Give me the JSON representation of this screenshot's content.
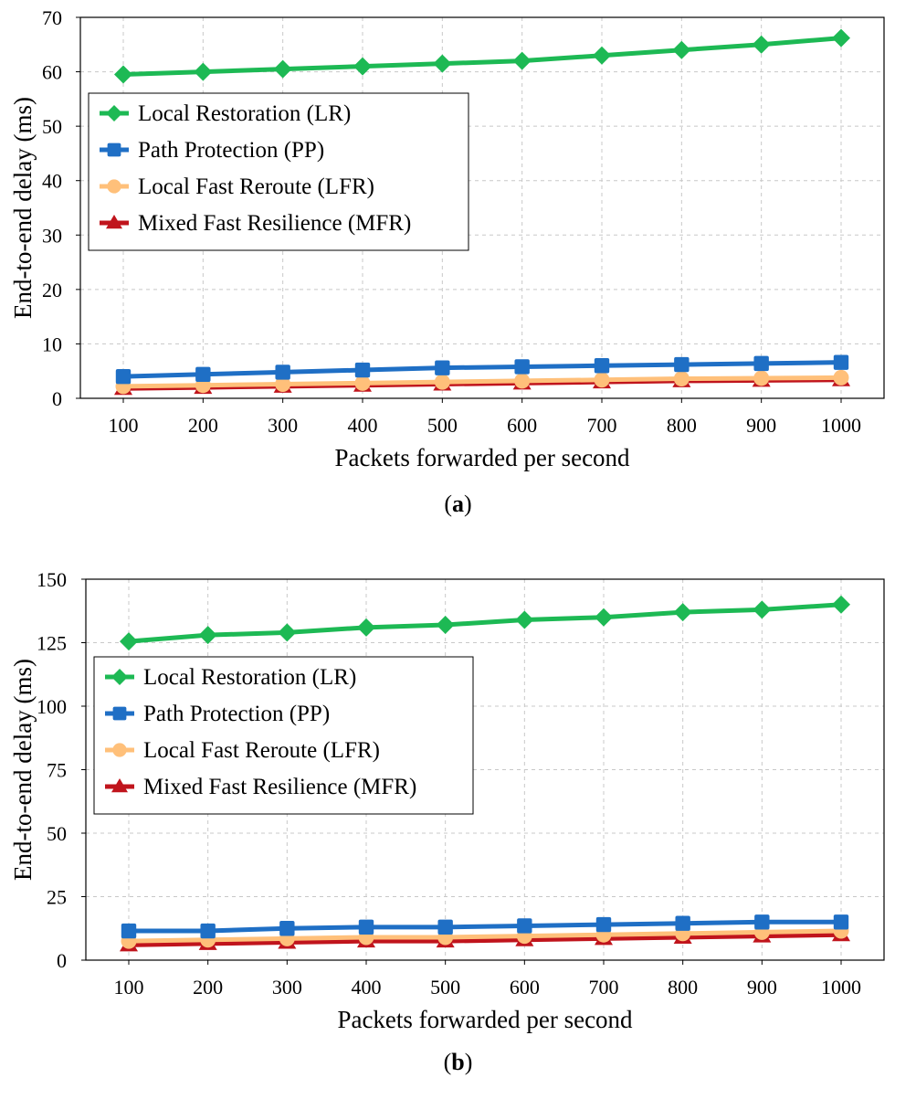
{
  "chart_data": [
    {
      "type": "line",
      "caption": "a",
      "xlabel": "Packets forwarded per second",
      "ylabel": "End-to-end delay  (ms)",
      "x": [
        100,
        200,
        300,
        400,
        500,
        600,
        700,
        800,
        900,
        1000
      ],
      "xticks": [
        "100",
        "200",
        "300",
        "400",
        "500",
        "600",
        "700",
        "800",
        "900",
        "1000"
      ],
      "ylim": [
        0,
        70
      ],
      "yticks": [
        "0",
        "10",
        "20",
        "30",
        "40",
        "50",
        "60",
        "70"
      ],
      "yticks_values": [
        0,
        10,
        20,
        30,
        40,
        50,
        60,
        70
      ],
      "grid": true,
      "legend_position": "upper-left",
      "series": [
        {
          "name": "Local Restoration (LR)",
          "color": "#1db954",
          "marker": "diamond",
          "values": [
            59.5,
            60.0,
            60.5,
            61.0,
            61.5,
            62.0,
            63.0,
            64.0,
            65.0,
            66.2
          ]
        },
        {
          "name": "Path Protection (PP)",
          "color": "#1f6fc5",
          "marker": "square",
          "values": [
            4.0,
            4.4,
            4.8,
            5.2,
            5.6,
            5.8,
            6.0,
            6.2,
            6.4,
            6.6
          ]
        },
        {
          "name": "Local Fast Reroute (LFR)",
          "color": "#ffc07a",
          "marker": "circle",
          "values": [
            2.2,
            2.4,
            2.6,
            2.8,
            3.0,
            3.2,
            3.4,
            3.6,
            3.7,
            3.8
          ]
        },
        {
          "name": "Mixed Fast Resilience (MFR)",
          "color": "#c0141c",
          "marker": "triangle",
          "values": [
            1.8,
            2.0,
            2.2,
            2.4,
            2.6,
            2.8,
            3.0,
            3.2,
            3.3,
            3.4
          ]
        }
      ]
    },
    {
      "type": "line",
      "caption": "b",
      "xlabel": "Packets forwarded per second",
      "ylabel": "End-to-end delay  (ms)",
      "x": [
        100,
        200,
        300,
        400,
        500,
        600,
        700,
        800,
        900,
        1000
      ],
      "xticks": [
        "100",
        "200",
        "300",
        "400",
        "500",
        "600",
        "700",
        "800",
        "900",
        "1000"
      ],
      "ylim": [
        0,
        150
      ],
      "yticks": [
        "0",
        "25",
        "50",
        "75",
        "100",
        "125",
        "150"
      ],
      "yticks_values": [
        0,
        25,
        50,
        75,
        100,
        125,
        150
      ],
      "grid": true,
      "legend_position": "upper-left",
      "series": [
        {
          "name": "Local Restoration (LR)",
          "color": "#1db954",
          "marker": "diamond",
          "values": [
            125.5,
            128.0,
            129.0,
            131.0,
            132.0,
            134.0,
            135.0,
            137.0,
            138.0,
            140.0
          ]
        },
        {
          "name": "Path Protection (PP)",
          "color": "#1f6fc5",
          "marker": "square",
          "values": [
            11.5,
            11.5,
            12.5,
            13.0,
            13.0,
            13.5,
            14.0,
            14.5,
            15.0,
            15.0
          ]
        },
        {
          "name": "Local Fast Reroute (LFR)",
          "color": "#ffc07a",
          "marker": "circle",
          "values": [
            7.5,
            8.0,
            8.5,
            9.0,
            9.0,
            9.5,
            10.0,
            10.5,
            11.0,
            11.5
          ]
        },
        {
          "name": "Mixed Fast Resilience (MFR)",
          "color": "#c0141c",
          "marker": "triangle",
          "values": [
            6.0,
            6.5,
            7.0,
            7.5,
            7.5,
            8.0,
            8.5,
            9.0,
            9.5,
            10.0
          ]
        }
      ]
    }
  ],
  "captions": {
    "a": "(a)",
    "a_left": "(",
    "a_letter": "a",
    "a_right": ")",
    "b_left": "(",
    "b_letter": "b",
    "b_right": ")"
  }
}
